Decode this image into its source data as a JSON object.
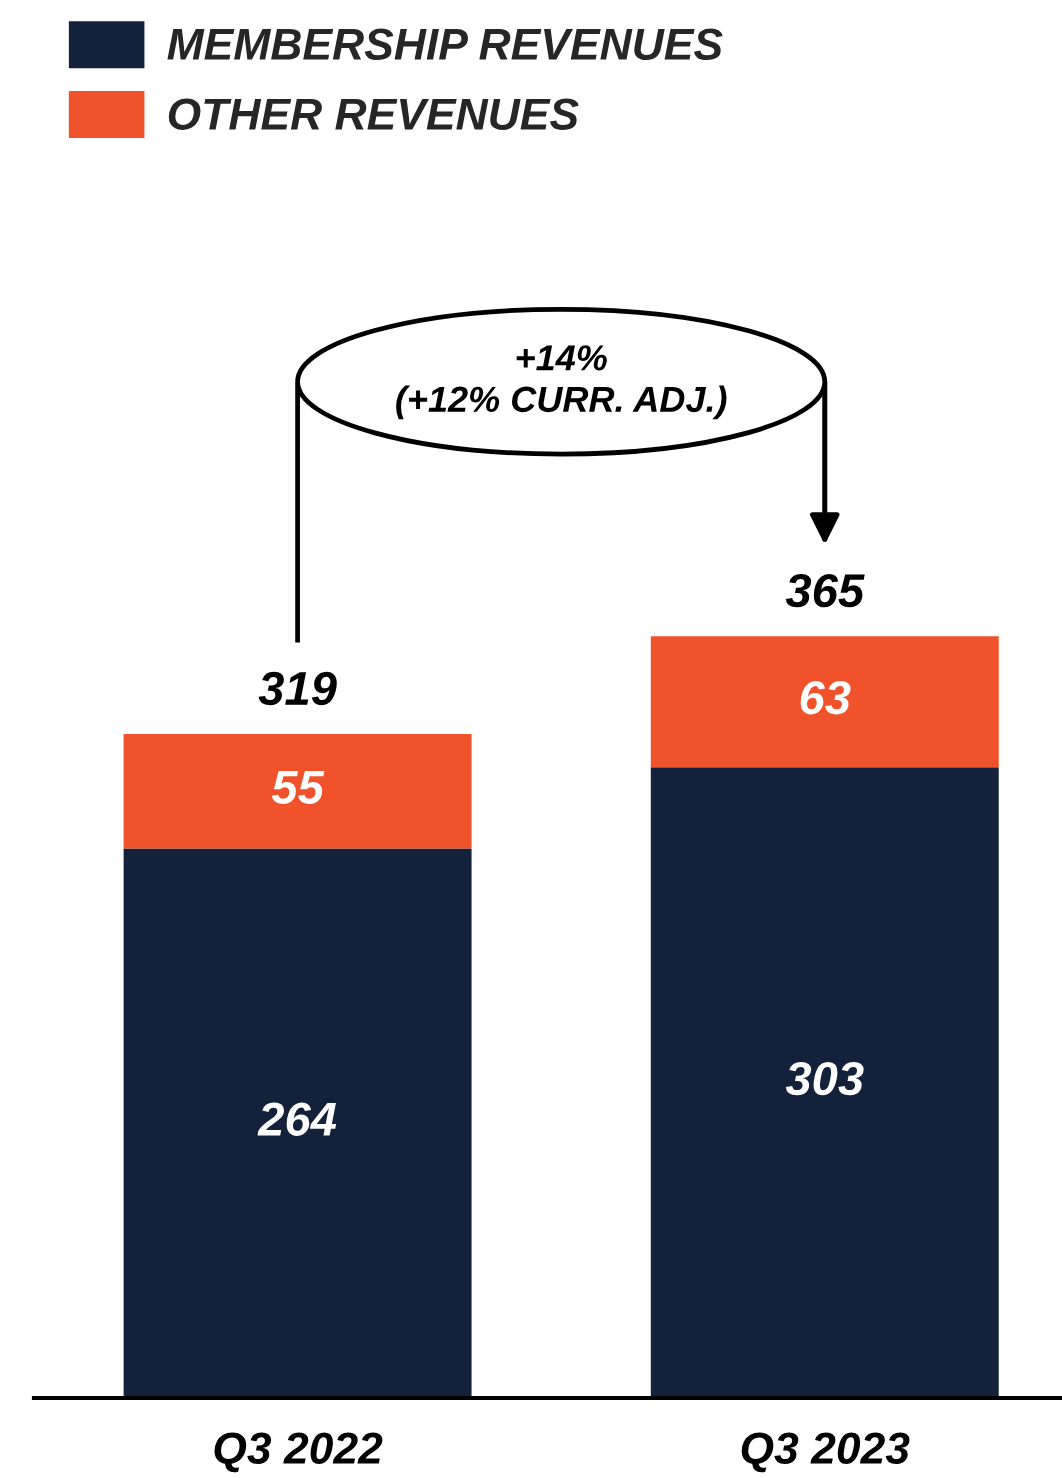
{
  "chart_data": {
    "type": "bar",
    "stacked": true,
    "categories": [
      "Q3 2022",
      "Q3 2023"
    ],
    "series": [
      {
        "name": "MEMBERSHIP REVENUES",
        "color": "#13213a",
        "values": [
          264,
          303
        ]
      },
      {
        "name": "OTHER REVENUES",
        "color": "#f0532c",
        "values": [
          55,
          63
        ]
      }
    ],
    "data_labels": true,
    "totals": [
      "319",
      "365"
    ],
    "annotations": [
      "+14%\n(+12% CURR. ADJ.)"
    ],
    "legend": "top left"
  }
}
